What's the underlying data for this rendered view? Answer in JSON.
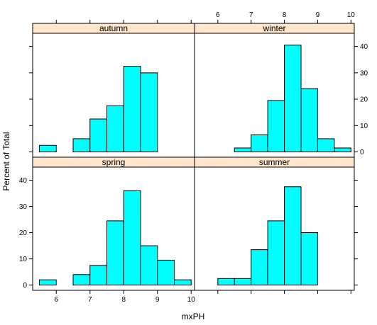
{
  "chart_data": {
    "type": "bar",
    "subtype": "histogram-lattice",
    "xlabel": "mxPH",
    "ylabel": "Percent of Total",
    "xlim": [
      5.3,
      10.1
    ],
    "ylim": [
      -2,
      45
    ],
    "x_ticks": [
      6,
      7,
      8,
      9,
      10
    ],
    "y_ticks": [
      0,
      10,
      20,
      30,
      40
    ],
    "bin_edges": [
      5.5,
      6.0,
      6.5,
      7.0,
      7.5,
      8.0,
      8.5,
      9.0,
      9.5,
      10.0
    ],
    "bar_color": "#00ffff",
    "strip_color": "#ffe5cc",
    "panels": [
      {
        "name": "autumn",
        "values": [
          2.5,
          0,
          5,
          12.5,
          17.5,
          32.5,
          30,
          0,
          0
        ]
      },
      {
        "name": "winter",
        "values": [
          0,
          0,
          1.5,
          6.5,
          19.5,
          40.5,
          24,
          5,
          1.5
        ]
      },
      {
        "name": "spring",
        "values": [
          2,
          0,
          4,
          7.5,
          24.5,
          36,
          15,
          9.5,
          2
        ]
      },
      {
        "name": "summer",
        "values": [
          0,
          2.5,
          2.5,
          13.5,
          24.5,
          37.5,
          20,
          0,
          0
        ]
      }
    ]
  }
}
